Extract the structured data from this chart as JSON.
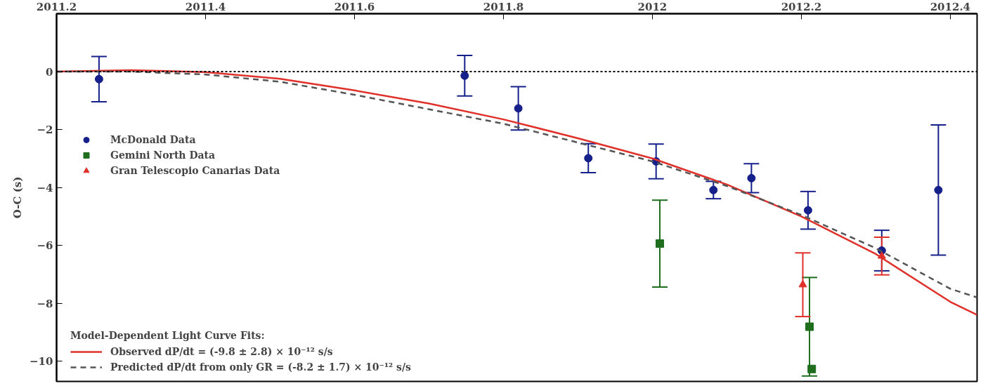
{
  "chart_data": {
    "type": "scatter",
    "ylabel": "O-C (s)",
    "xlim": [
      2011.2,
      2012.436
    ],
    "xticks": [
      2011.2,
      2011.4,
      2011.6,
      2011.8,
      2012,
      2012.2,
      2012.4
    ],
    "ylim": [
      -10.7,
      2
    ],
    "yticks": [
      -10,
      -8,
      -6,
      -4,
      -2,
      0
    ],
    "grid": false,
    "legend": "left",
    "legend_title": "Model-Dependent Light Curve Fits:",
    "ref_lines": [
      {
        "axis": "y",
        "value": 0,
        "color": "#000000",
        "line_style": "dotted"
      }
    ],
    "series": [
      {
        "name": "McDonald Data",
        "marker": "circle",
        "color": "#16208a",
        "x": [
          2011.257,
          2011.748,
          2011.82,
          2011.914,
          2012.005,
          2012.082,
          2012.133,
          2012.209,
          2012.308,
          2012.384
        ],
        "values": [
          -0.26,
          -0.14,
          -1.27,
          -2.99,
          -3.1,
          -4.09,
          -3.68,
          -4.79,
          -6.18,
          -4.09
        ],
        "errors": [
          0.78,
          0.7,
          0.75,
          0.5,
          0.6,
          0.3,
          0.5,
          0.65,
          0.7,
          2.25
        ]
      },
      {
        "name": "Gemini North Data",
        "marker": "square",
        "color": "#1e6e1e",
        "x": [
          2012.01,
          2012.211,
          2012.214
        ],
        "values": [
          -5.94,
          -8.81,
          -10.27
        ],
        "errors": [
          1.5,
          1.7,
          null
        ]
      },
      {
        "name": "Gran Telescopio Canarias Data",
        "marker": "triangle",
        "color": "#e0302a",
        "x": [
          2012.202,
          2012.308
        ],
        "values": [
          -7.36,
          -6.37
        ],
        "errors": [
          1.1,
          0.65
        ]
      },
      {
        "name": "Observed dP/dt = (-9.8 ± 2.8) × 10⁻¹² s/s",
        "type": "line",
        "line_style": "solid",
        "color": "#e0302a",
        "x": [
          2011.2,
          2011.3,
          2011.4,
          2011.5,
          2011.6,
          2011.7,
          2011.8,
          2011.9,
          2012.0,
          2012.1,
          2012.2,
          2012.3,
          2012.4,
          2012.436
        ],
        "values": [
          0.0,
          0.05,
          -0.02,
          -0.25,
          -0.65,
          -1.1,
          -1.65,
          -2.3,
          -3.0,
          -3.9,
          -5.0,
          -6.3,
          -7.95,
          -8.4
        ]
      },
      {
        "name": "Predicted dP/dt from only GR = (-8.2 ± 1.7) × 10⁻¹² s/s",
        "type": "line",
        "line_style": "dashed",
        "color": "#555555",
        "x": [
          2011.2,
          2011.3,
          2011.4,
          2011.5,
          2011.6,
          2011.7,
          2011.8,
          2011.9,
          2012.0,
          2012.1,
          2012.2,
          2012.3,
          2012.4,
          2012.436
        ],
        "values": [
          0.0,
          0.0,
          -0.1,
          -0.35,
          -0.8,
          -1.3,
          -1.8,
          -2.45,
          -3.1,
          -3.95,
          -4.95,
          -6.1,
          -7.5,
          -7.8
        ]
      }
    ]
  }
}
